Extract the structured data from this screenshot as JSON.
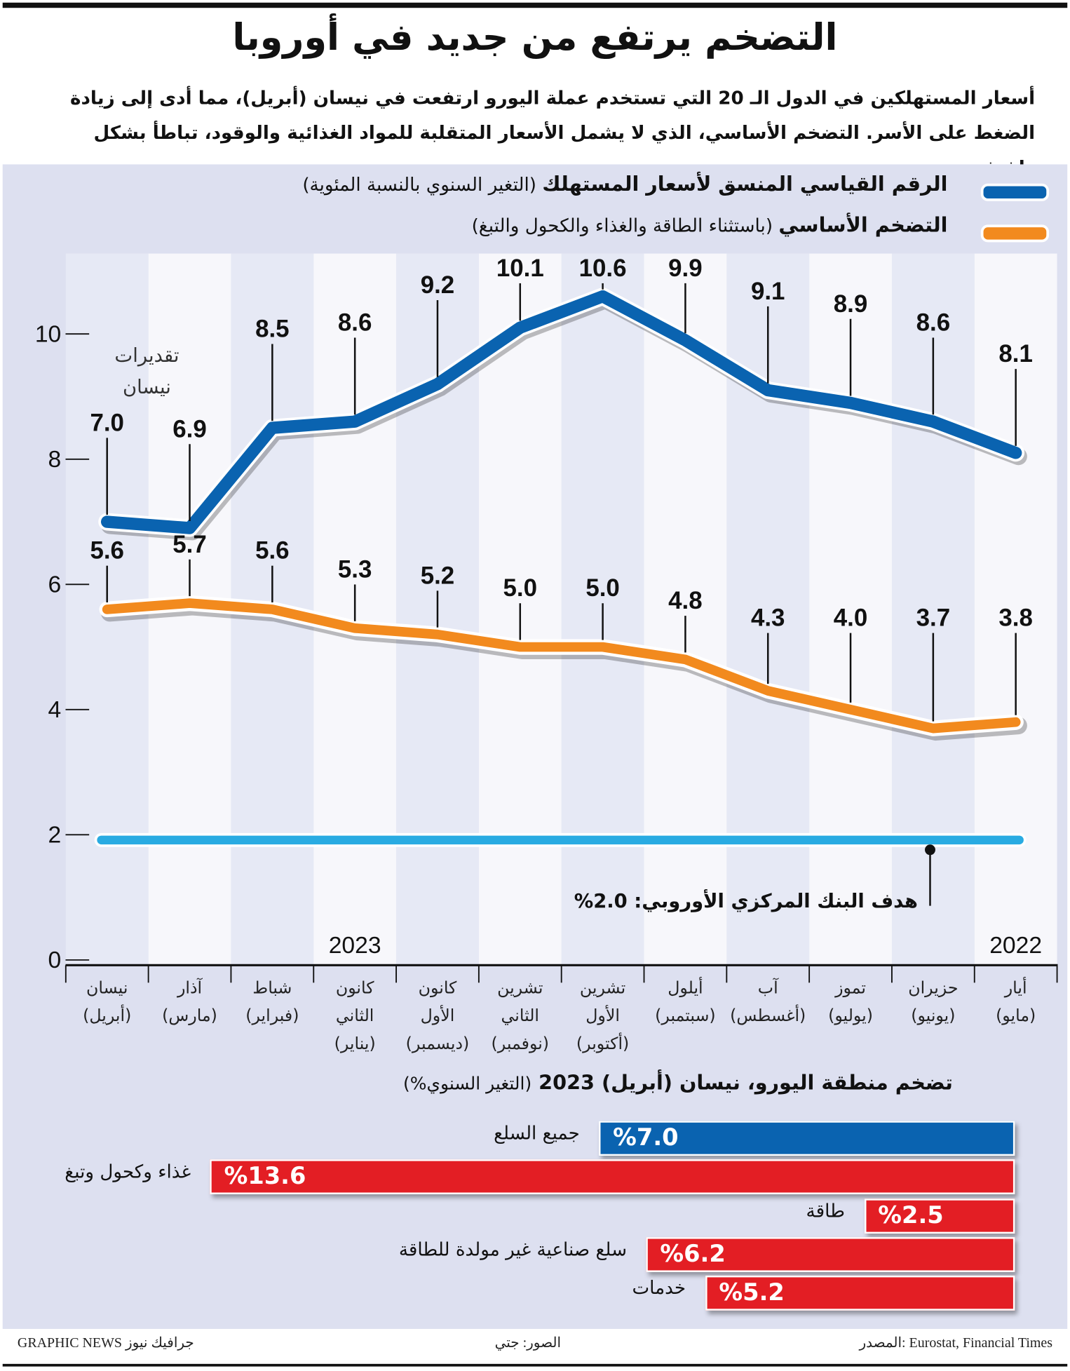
{
  "title": "التضخم يرتفع من جديد في أوروبا",
  "subtitle": "أسعار المستهلكين في الدول الـ 20 التي تستخدم عملة اليورو ارتفعت في نيسان (أبريل)، مما أدى إلى زيادة الضغط على الأسر. التضخم الأساسي، الذي لا يشمل الأسعار المتقلبة للمواد الغذائية والوقود، تباطأ بشكل طفيف",
  "legend": [
    {
      "label": "الرقم القياسي المنسق لأسعار المستهلك",
      "note": "(التغير السنوي بالنسبة المئوية)",
      "color": "#0a63b0"
    },
    {
      "label": "التضخم الأساسي",
      "note": "(باستثناء الطاقة والغذاء والكحول والتبغ)",
      "color": "#f28a1e"
    }
  ],
  "chart_data": [
    {
      "type": "line",
      "categories": [
        "أيار (مايو)",
        "حزيران (يونيو)",
        "تموز (يوليو)",
        "آب (أغسطس)",
        "أيلول (سبتمبر)",
        "تشرين الأول (أكتوبر)",
        "تشرين الثاني (نوفمبر)",
        "كانون الأول (ديسمبر)",
        "كانون الثاني (يناير)",
        "شباط (فبراير)",
        "آذار (مارس)",
        "نيسان (أبريل)"
      ],
      "category_lines": [
        [
          "أيار",
          "(مايو)"
        ],
        [
          "حزيران",
          "(يونيو)"
        ],
        [
          "تموز",
          "(يوليو)"
        ],
        [
          "آب",
          "(أغسطس)"
        ],
        [
          "أيلول",
          "(سبتمبر)"
        ],
        [
          "تشرين",
          "الأول",
          "(أكتوبر)"
        ],
        [
          "تشرين",
          "الثاني",
          "(نوفمبر)"
        ],
        [
          "كانون",
          "الأول",
          "(ديسمبر)"
        ],
        [
          "كانون",
          "الثاني",
          "(يناير)"
        ],
        [
          "شباط",
          "(فبراير)"
        ],
        [
          "آذار",
          "(مارس)"
        ],
        [
          "نيسان",
          "(أبريل)"
        ]
      ],
      "x_direction": "right-to-left",
      "year_labels": [
        {
          "text": "2022",
          "at": "أيار (مايو)"
        },
        {
          "text": "2023",
          "at": "كانون الثاني (يناير)"
        }
      ],
      "series": [
        {
          "name": "الرقم القياسي المنسق لأسعار المستهلك",
          "color": "#0a63b0",
          "values": [
            8.1,
            8.6,
            8.9,
            9.1,
            9.9,
            10.6,
            10.1,
            9.2,
            8.6,
            8.5,
            6.9,
            7.0
          ],
          "labels": [
            "8.1",
            "8.6",
            "8.9",
            "9.1",
            "9.9",
            "10.6",
            "10.1",
            "9.2",
            "8.6",
            "8.5",
            "6.9",
            "7.0"
          ]
        },
        {
          "name": "التضخم الأساسي",
          "color": "#f28a1e",
          "values": [
            3.8,
            3.7,
            4.0,
            4.3,
            4.8,
            5.0,
            5.0,
            5.2,
            5.3,
            5.6,
            5.7,
            5.6
          ],
          "labels": [
            "3.8",
            "3.7",
            "4.0",
            "4.3",
            "4.8",
            "5.0",
            "5.0",
            "5.2",
            "5.3",
            "5.6",
            "5.7",
            "5.6"
          ]
        }
      ],
      "reference_line": {
        "value": 2.0,
        "label": "هدف البنك المركزي الأوروبي: 2.0%",
        "color": "#29abe2"
      },
      "annotation": [
        "تقديرات",
        "نيسان"
      ],
      "ylim": [
        0,
        11
      ],
      "yticks": [
        0,
        2,
        4,
        6,
        8,
        10
      ],
      "ytick_labels": [
        "0",
        "2",
        "4",
        "6",
        "8",
        "10"
      ],
      "grid": false
    },
    {
      "type": "bar",
      "orientation": "horizontal",
      "title": "تضخم منطقة اليورو، نيسان (أبريل) 2023",
      "subtitle": "(التغير السنوي%)",
      "categories": [
        "جميع السلع",
        "غذاء وكحول وتبغ",
        "طاقة",
        "سلع صناعية غير مولدة للطاقة",
        "خدمات"
      ],
      "values": [
        7.0,
        13.6,
        2.5,
        6.2,
        5.2
      ],
      "labels": [
        "%7.0",
        "%13.6",
        "%2.5",
        "%6.2",
        "%5.2"
      ],
      "colors": [
        "#0a63b0",
        "#e31e24",
        "#e31e24",
        "#e31e24",
        "#e31e24"
      ]
    }
  ],
  "footer": {
    "source": "المصدر: Eurostat, Financial Times",
    "photos": "الصور: جتي",
    "credit": "GRAPHIC NEWS جرافيك نيوز"
  }
}
